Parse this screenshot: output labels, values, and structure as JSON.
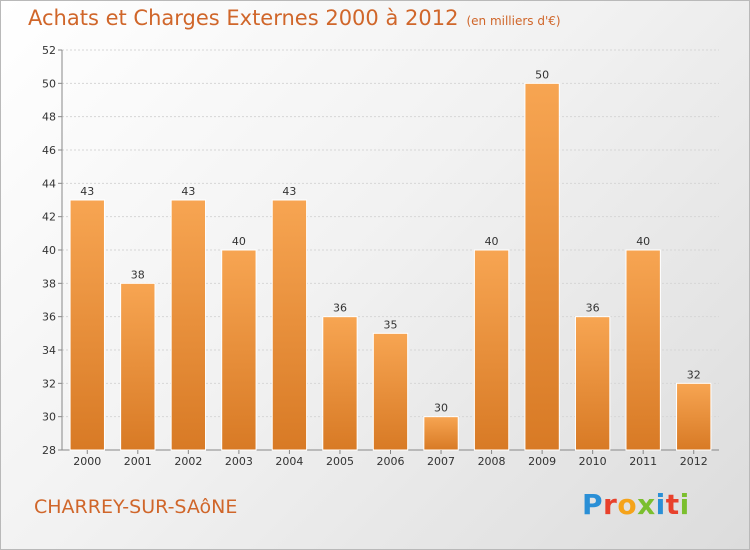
{
  "header": {
    "title": "Achats et Charges Externes 2000 à 2012",
    "unit": "(en milliers d'€)"
  },
  "footer": {
    "commune": "CHARREY-SUR-SAôNE",
    "logo_letters": [
      "P",
      "r",
      "o",
      "x",
      "i",
      "t",
      "i"
    ]
  },
  "colors": {
    "accent": "#d0662a",
    "bar_light": "#f7a552",
    "bar_dark": "#d87a25",
    "logo": [
      "#2a8fd6",
      "#e8412c",
      "#f5a31a",
      "#7bbf2e",
      "#2a8fd6",
      "#e8412c",
      "#7bbf2e"
    ]
  },
  "chart_data": {
    "type": "bar",
    "title": "Achats et Charges Externes 2000 à 2012",
    "categories": [
      "2000",
      "2001",
      "2002",
      "2003",
      "2004",
      "2005",
      "2006",
      "2007",
      "2008",
      "2009",
      "2010",
      "2011",
      "2012"
    ],
    "values": [
      43,
      38,
      43,
      40,
      43,
      36,
      35,
      30,
      40,
      50,
      36,
      40,
      32
    ],
    "xlabel": "",
    "ylabel": "",
    "ylim": [
      28,
      52
    ],
    "yticks": [
      28,
      30,
      32,
      34,
      36,
      38,
      40,
      42,
      44,
      46,
      48,
      50,
      52
    ],
    "grid": true
  }
}
